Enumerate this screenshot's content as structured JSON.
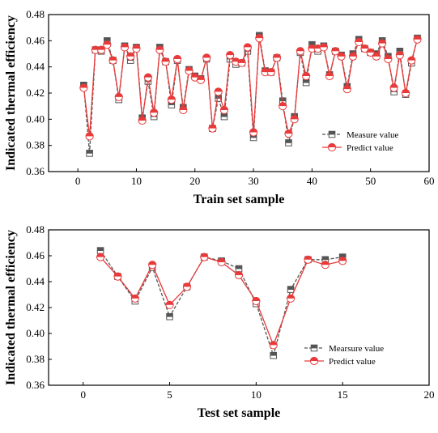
{
  "chart_data": [
    {
      "type": "line",
      "xlabel": "Train set sample",
      "ylabel": "Indicated thermal efficiency",
      "xlim": [
        -5,
        60
      ],
      "ylim": [
        0.36,
        0.48
      ],
      "xticks": [
        0,
        10,
        20,
        30,
        40,
        50,
        60
      ],
      "yticks": [
        0.36,
        0.38,
        0.4,
        0.42,
        0.44,
        0.46,
        0.48
      ],
      "legend_position": "right",
      "x": [
        1,
        2,
        3,
        4,
        5,
        6,
        7,
        8,
        9,
        10,
        11,
        12,
        13,
        14,
        15,
        16,
        17,
        18,
        19,
        20,
        21,
        22,
        23,
        24,
        25,
        26,
        27,
        28,
        29,
        30,
        31,
        32,
        33,
        34,
        35,
        36,
        37,
        38,
        39,
        40,
        41,
        42,
        43,
        44,
        45,
        46,
        47,
        48,
        49,
        50,
        51,
        52,
        53,
        54,
        55,
        56,
        57,
        58
      ],
      "series": [
        {
          "name": "Measure value",
          "color": "#555555",
          "marker": "square",
          "dash": true,
          "values": [
            0.426,
            0.374,
            0.453,
            0.452,
            0.46,
            0.445,
            0.415,
            0.456,
            0.445,
            0.455,
            0.401,
            0.429,
            0.402,
            0.455,
            0.444,
            0.411,
            0.445,
            0.409,
            0.438,
            0.433,
            0.431,
            0.446,
            0.393,
            0.416,
            0.402,
            0.446,
            0.442,
            0.443,
            0.452,
            0.386,
            0.464,
            0.437,
            0.436,
            0.447,
            0.414,
            0.382,
            0.402,
            0.451,
            0.428,
            0.457,
            0.452,
            0.456,
            0.434,
            0.452,
            0.449,
            0.425,
            0.45,
            0.461,
            0.454,
            0.451,
            0.45,
            0.46,
            0.448,
            0.421,
            0.452,
            0.419,
            0.443,
            0.462
          ]
        },
        {
          "name": "Predict value",
          "color": "#e83a3a",
          "marker": "circle",
          "dash": false,
          "values": [
            0.424,
            0.387,
            0.453,
            0.453,
            0.457,
            0.445,
            0.417,
            0.455,
            0.448,
            0.454,
            0.399,
            0.432,
            0.405,
            0.453,
            0.444,
            0.415,
            0.446,
            0.407,
            0.437,
            0.432,
            0.43,
            0.447,
            0.393,
            0.421,
            0.407,
            0.449,
            0.444,
            0.443,
            0.455,
            0.39,
            0.462,
            0.436,
            0.436,
            0.447,
            0.41,
            0.389,
            0.4,
            0.452,
            0.433,
            0.454,
            0.454,
            0.455,
            0.433,
            0.452,
            0.448,
            0.423,
            0.448,
            0.459,
            0.454,
            0.451,
            0.448,
            0.458,
            0.446,
            0.424,
            0.449,
            0.42,
            0.445,
            0.461
          ]
        }
      ]
    },
    {
      "type": "line",
      "xlabel": "Test set sample",
      "ylabel": "Indicated thermal efficiency",
      "xlim": [
        -2,
        20
      ],
      "ylim": [
        0.36,
        0.48
      ],
      "xticks": [
        0,
        5,
        10,
        15,
        20
      ],
      "yticks": [
        0.36,
        0.38,
        0.4,
        0.42,
        0.44,
        0.46,
        0.48
      ],
      "legend_position": "bottom-right",
      "x": [
        1,
        2,
        3,
        4,
        5,
        6,
        7,
        8,
        9,
        10,
        11,
        12,
        13,
        14,
        15
      ],
      "series": [
        {
          "name": "Mearsure value",
          "color": "#555555",
          "marker": "square",
          "dash": true,
          "values": [
            0.464,
            0.444,
            0.425,
            0.451,
            0.413,
            0.436,
            0.459,
            0.456,
            0.45,
            0.423,
            0.383,
            0.434,
            0.457,
            0.457,
            0.459
          ]
        },
        {
          "name": "Predict value",
          "color": "#e83a3a",
          "marker": "circle",
          "dash": false,
          "values": [
            0.459,
            0.444,
            0.427,
            0.453,
            0.422,
            0.436,
            0.459,
            0.455,
            0.445,
            0.425,
            0.391,
            0.427,
            0.457,
            0.453,
            0.456
          ]
        }
      ]
    }
  ]
}
